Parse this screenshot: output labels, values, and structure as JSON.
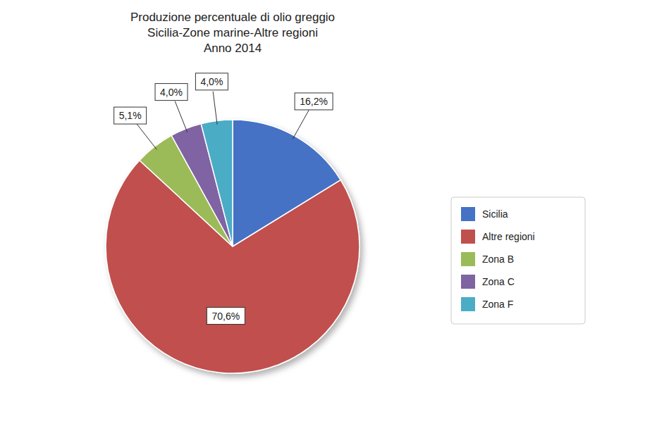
{
  "chart_data": {
    "type": "pie",
    "title": "Produzione percentuale di olio greggio\nSicilia-Zone marine-Altre regioni\nAnno 2014",
    "categories": [
      "Sicilia",
      "Altre regioni",
      "Zona B",
      "Zona C",
      "Zona F"
    ],
    "values": [
      16.2,
      70.6,
      5.1,
      4.0,
      4.0
    ],
    "value_labels": [
      "16,2%",
      "70,6%",
      "5,1%",
      "4,0%",
      "4,0%"
    ],
    "colors": [
      "#4472C4",
      "#C0504D",
      "#9BBB59",
      "#8064A2",
      "#4BACC6"
    ],
    "data_labels": true,
    "legend": "right"
  }
}
